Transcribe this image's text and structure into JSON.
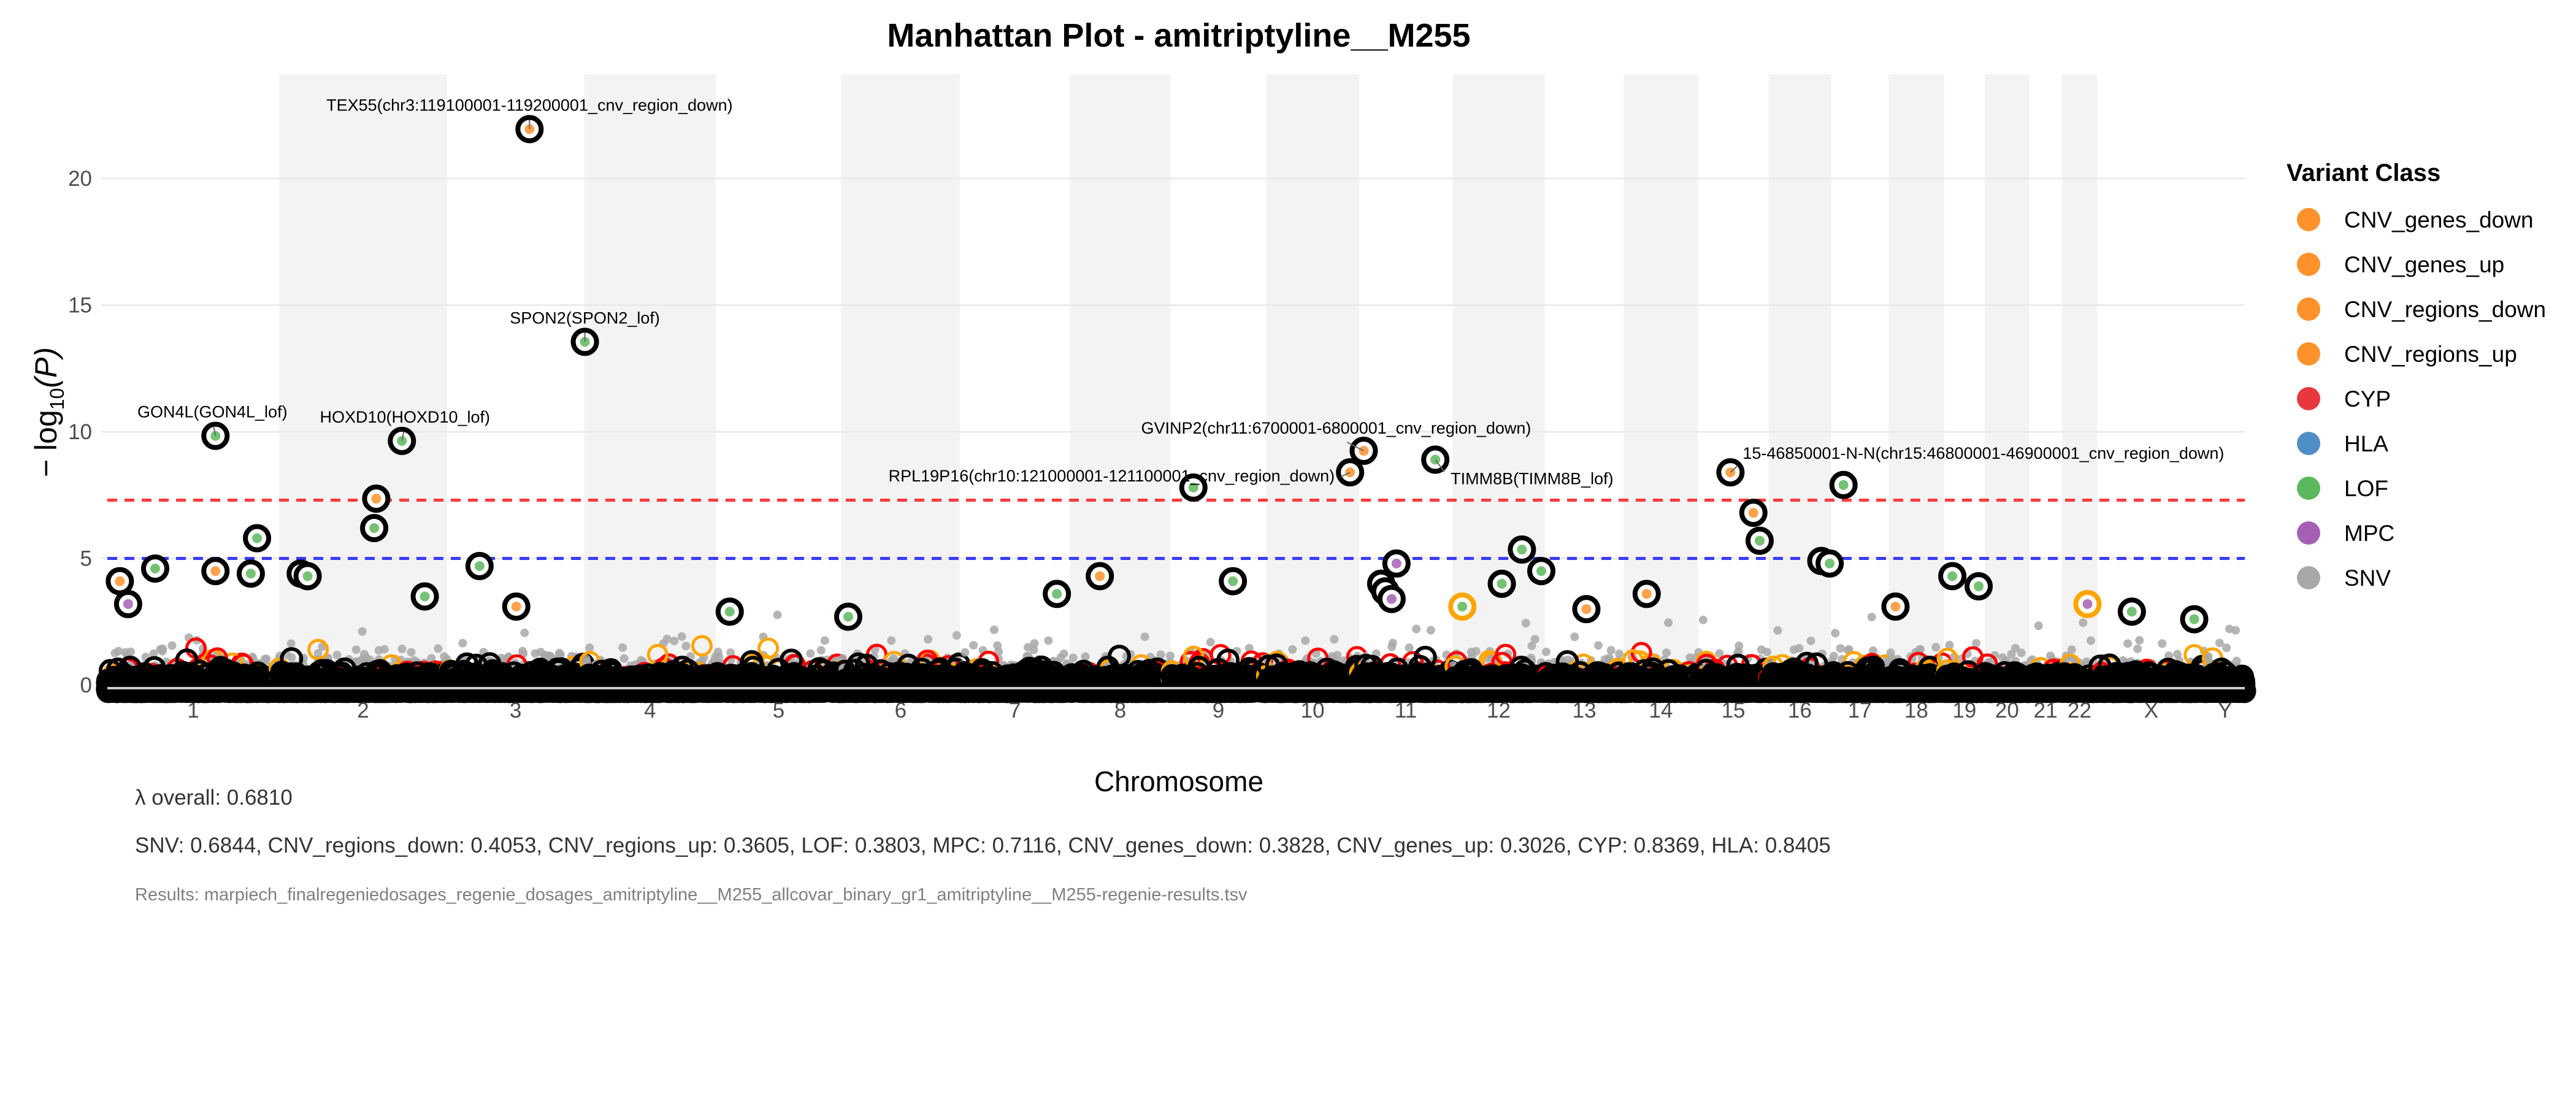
{
  "chart_data": {
    "type": "scatter",
    "subtype": "manhattan",
    "title": "Manhattan Plot - amitriptyline__M255",
    "xlabel": "Chromosome",
    "ylabel_prefix": "− log",
    "ylabel_sub": "10",
    "ylabel_suffix": "(P)",
    "ylim": [
      0,
      23
    ],
    "yticks": [
      "0",
      "5",
      "10",
      "15",
      "20"
    ],
    "grid": true,
    "chromosomes": [
      "1",
      "2",
      "3",
      "4",
      "5",
      "6",
      "7",
      "8",
      "9",
      "10",
      "11",
      "12",
      "13",
      "14",
      "15",
      "16",
      "17",
      "18",
      "19",
      "20",
      "21",
      "22",
      "X",
      "Y"
    ],
    "thresholds": [
      {
        "value": 7.3,
        "color": "#ff3b3b",
        "style": "dashed"
      },
      {
        "value": 5.0,
        "color": "#3b3bff",
        "style": "dashed"
      }
    ],
    "legend": {
      "title": "Variant Class",
      "position": "right",
      "items": [
        {
          "label": "CNV_genes_down",
          "color": "#ff922b"
        },
        {
          "label": "CNV_genes_up",
          "color": "#ff922b"
        },
        {
          "label": "CNV_regions_down",
          "color": "#ff922b"
        },
        {
          "label": "CNV_regions_up",
          "color": "#ff922b"
        },
        {
          "label": "CYP",
          "color": "#e8383d"
        },
        {
          "label": "HLA",
          "color": "#4f8ec4"
        },
        {
          "label": "LOF",
          "color": "#5cb85c"
        },
        {
          "label": "MPC",
          "color": "#a560b5"
        },
        {
          "label": "SNV",
          "color": "#a8a8a8"
        }
      ]
    },
    "points": [
      {
        "chr": "3",
        "pos_mb": 119.15,
        "logp": 21.95,
        "class": "CNV_regions_down",
        "label": "TEX55(chr3:119100001-119200001_cnv_region_down)"
      },
      {
        "chr": "4",
        "pos_mb": 1.0,
        "logp": 13.55,
        "class": "LOF",
        "label": "SPON2(SPON2_lof)"
      },
      {
        "chr": "1",
        "pos_mb": 156,
        "logp": 9.84,
        "class": "LOF",
        "label": "GON4L(GON4L_lof)"
      },
      {
        "chr": "2",
        "pos_mb": 177,
        "logp": 9.64,
        "class": "LOF",
        "label": "HOXD10(HOXD10_lof)"
      },
      {
        "chr": "11",
        "pos_mb": 6.75,
        "logp": 9.25,
        "class": "CNV_regions_down",
        "label": "GVINP2(chr11:6700001-6800001_cnv_region_down)"
      },
      {
        "chr": "10",
        "pos_mb": 121.05,
        "logp": 8.4,
        "class": "CNV_regions_down",
        "label": "RPL19P16(chr10:121000001-121100001_cnv_region_down)"
      },
      {
        "chr": "11",
        "pos_mb": 110,
        "logp": 8.9,
        "class": "LOF",
        "label": "TIMM8B(TIMM8B_lof)"
      },
      {
        "chr": "15",
        "pos_mb": 46.85,
        "logp": 8.4,
        "class": "CNV_regions_down",
        "label": "15-46850001-N-N(chr15:46800001-46900001_cnv_region_down)"
      },
      {
        "chr": "17",
        "pos_mb": 18,
        "logp": 7.9,
        "class": "LOF"
      },
      {
        "chr": "9",
        "pos_mb": 33,
        "logp": 7.8,
        "class": "LOF"
      },
      {
        "chr": "2",
        "pos_mb": 140,
        "logp": 7.36,
        "class": "CNV_genes_up"
      },
      {
        "chr": "2",
        "pos_mb": 137,
        "logp": 6.2,
        "class": "LOF"
      },
      {
        "chr": "1",
        "pos_mb": 216,
        "logp": 5.8,
        "class": "LOF"
      },
      {
        "chr": "15",
        "pos_mb": 80,
        "logp": 6.8,
        "class": "CNV_genes_down"
      },
      {
        "chr": "15",
        "pos_mb": 89,
        "logp": 5.7,
        "class": "LOF"
      },
      {
        "chr": "12",
        "pos_mb": 100,
        "logp": 5.35,
        "class": "LOF"
      },
      {
        "chr": "11",
        "pos_mb": 54,
        "logp": 4.8,
        "class": "MPC"
      },
      {
        "chr": "16",
        "pos_mb": 76,
        "logp": 4.9,
        "class": "LOF"
      },
      {
        "chr": "16",
        "pos_mb": 88,
        "logp": 4.8,
        "class": "LOF"
      },
      {
        "chr": "1",
        "pos_mb": 18,
        "logp": 4.1,
        "class": "CNV_genes_down"
      },
      {
        "chr": "1",
        "pos_mb": 69,
        "logp": 4.6,
        "class": "LOF"
      },
      {
        "chr": "1",
        "pos_mb": 156,
        "logp": 4.5,
        "class": "CNV_genes_up"
      },
      {
        "chr": "1",
        "pos_mb": 207,
        "logp": 4.4,
        "class": "LOF"
      },
      {
        "chr": "2",
        "pos_mb": 31,
        "logp": 4.4,
        "class": "LOF"
      },
      {
        "chr": "2",
        "pos_mb": 41,
        "logp": 4.3,
        "class": "LOF"
      },
      {
        "chr": "3",
        "pos_mb": 47,
        "logp": 4.7,
        "class": "LOF"
      },
      {
        "chr": "8",
        "pos_mb": 43,
        "logp": 4.3,
        "class": "CNV_genes_down"
      },
      {
        "chr": "9",
        "pos_mb": 90,
        "logp": 4.1,
        "class": "LOF"
      },
      {
        "chr": "12",
        "pos_mb": 71,
        "logp": 4.0,
        "class": "LOF"
      },
      {
        "chr": "12",
        "pos_mb": 128,
        "logp": 4.5,
        "class": "LOF"
      },
      {
        "chr": "19",
        "pos_mb": 12,
        "logp": 4.3,
        "class": "LOF"
      },
      {
        "chr": "19",
        "pos_mb": 50,
        "logp": 3.9,
        "class": "LOF"
      },
      {
        "chr": "11",
        "pos_mb": 32,
        "logp": 4.0,
        "class": "LOF"
      },
      {
        "chr": "11",
        "pos_mb": 38,
        "logp": 3.7,
        "class": "LOF"
      },
      {
        "chr": "11",
        "pos_mb": 47,
        "logp": 3.4,
        "class": "MPC"
      },
      {
        "chr": "7",
        "pos_mb": 140,
        "logp": 3.6,
        "class": "LOF"
      },
      {
        "chr": "14",
        "pos_mb": 33,
        "logp": 3.6,
        "class": "CNV_genes_down"
      },
      {
        "chr": "22",
        "pos_mb": 37,
        "logp": 3.2,
        "class": "MPC",
        "ring": "#ffa500"
      },
      {
        "chr": "12",
        "pos_mb": 14,
        "logp": 3.1,
        "class": "LOF",
        "ring": "#ffa500"
      },
      {
        "chr": "X",
        "pos_mb": 50,
        "logp": 2.9,
        "class": "LOF"
      },
      {
        "chr": "X",
        "pos_mb": 140,
        "logp": 2.6,
        "class": "LOF"
      },
      {
        "chr": "1",
        "pos_mb": 30,
        "logp": 3.2,
        "class": "MPC"
      },
      {
        "chr": "3",
        "pos_mb": 100,
        "logp": 3.1,
        "class": "CNV_genes_down"
      },
      {
        "chr": "2",
        "pos_mb": 210,
        "logp": 3.5,
        "class": "LOF"
      },
      {
        "chr": "13",
        "pos_mb": 60,
        "logp": 3.0,
        "class": "CNV_genes_down"
      },
      {
        "chr": "18",
        "pos_mb": 10,
        "logp": 3.1,
        "class": "CNV_genes_down"
      },
      {
        "chr": "5",
        "pos_mb": 20,
        "logp": 2.9,
        "class": "LOF"
      },
      {
        "chr": "6",
        "pos_mb": 10,
        "logp": 2.7,
        "class": "LOF"
      }
    ]
  },
  "footer": {
    "lambda_overall": "λ overall: 0.6810",
    "lambda_by_class": "SNV: 0.6844, CNV_regions_down: 0.4053, CNV_regions_up: 0.3605, LOF: 0.3803, MPC: 0.7116, CNV_genes_down: 0.3828, CNV_genes_up: 0.3026, CYP: 0.8369, HLA: 0.8405",
    "results_file": "Results: marpiech_finalregeniedosages_regenie_dosages_amitriptyline__M255_allcovar_binary_gr1_amitriptyline__M255-regenie-results.tsv"
  }
}
